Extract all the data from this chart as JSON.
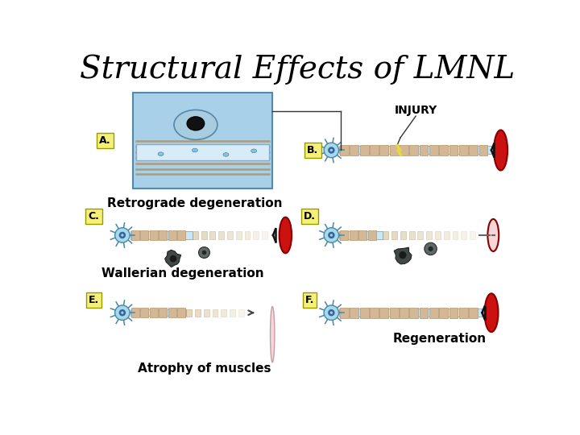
{
  "title": "Structural Effects of LMNL",
  "title_fontsize": 28,
  "background_color": "#ffffff",
  "label_A": "A.",
  "label_B": "B.",
  "label_C": "C.",
  "label_D": "D.",
  "label_E": "E.",
  "label_F": "F.",
  "label_bg": "#f5f07a",
  "text_retrograde": "Retrograde degeneration",
  "text_wallerian": "Wallerian degeneration",
  "text_atrophy": "Atrophy of muscles",
  "text_regeneration": "Regeneration",
  "text_injury": "INJURY",
  "nerve_tube_color": "#c8e8f5",
  "myelin_seg_color": "#d4b896",
  "myelin_seg_edge": "#b8966a",
  "muscle_red": "#cc1111",
  "muscle_pink": "#f0a0a0",
  "muscle_pale": "#f5d5d5",
  "cell_color": "#a8d8ea",
  "cell_edge": "#4488aa",
  "nucleus_color": "#336699",
  "debris_dark": "#3a3a3a",
  "debris_mid": "#7a9090",
  "box_blue": "#a8d0e8",
  "box_edge": "#5588aa",
  "injury_color": "#e8d840",
  "junction_color": "#111111",
  "line_color": "#333333",
  "annotation_fontsize": 11
}
